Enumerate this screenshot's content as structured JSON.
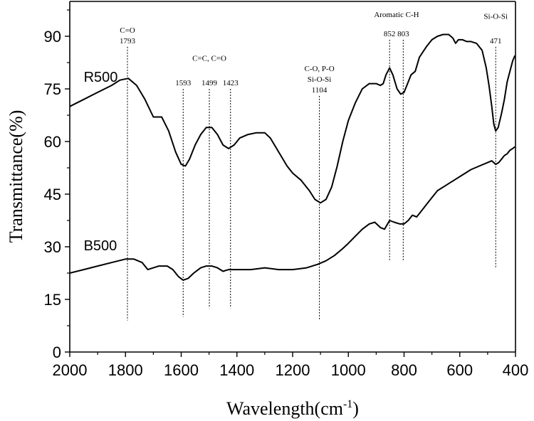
{
  "chart_data": {
    "type": "line",
    "xlabel": "Wavelength(cm",
    "xlabel_sup": "-1",
    "xlabel_close": ")",
    "ylabel": "Transmittance(%)",
    "xlim": [
      2000,
      400
    ],
    "ylim": [
      0,
      100
    ],
    "x_reversed": true,
    "xticks": [
      2000,
      1800,
      1600,
      1400,
      1200,
      1000,
      800,
      600,
      400
    ],
    "yticks": [
      0,
      15,
      30,
      45,
      60,
      75,
      90
    ],
    "grid": false,
    "series": [
      {
        "name": "R500",
        "label_at": [
          1950,
          77
        ],
        "points": [
          [
            2000,
            70
          ],
          [
            1950,
            72
          ],
          [
            1900,
            74
          ],
          [
            1850,
            76
          ],
          [
            1820,
            77.5
          ],
          [
            1790,
            78
          ],
          [
            1760,
            76
          ],
          [
            1730,
            72
          ],
          [
            1700,
            67
          ],
          [
            1670,
            67
          ],
          [
            1645,
            63
          ],
          [
            1620,
            57
          ],
          [
            1600,
            53.5
          ],
          [
            1585,
            53
          ],
          [
            1570,
            55
          ],
          [
            1550,
            59
          ],
          [
            1530,
            62
          ],
          [
            1510,
            64
          ],
          [
            1490,
            64
          ],
          [
            1470,
            62
          ],
          [
            1450,
            59
          ],
          [
            1430,
            58
          ],
          [
            1410,
            59
          ],
          [
            1390,
            61
          ],
          [
            1360,
            62
          ],
          [
            1330,
            62.5
          ],
          [
            1300,
            62.5
          ],
          [
            1280,
            61
          ],
          [
            1250,
            57
          ],
          [
            1220,
            53
          ],
          [
            1200,
            51
          ],
          [
            1170,
            49
          ],
          [
            1140,
            46
          ],
          [
            1120,
            43.5
          ],
          [
            1100,
            42.5
          ],
          [
            1080,
            43.5
          ],
          [
            1060,
            47
          ],
          [
            1040,
            53
          ],
          [
            1020,
            60
          ],
          [
            1000,
            66
          ],
          [
            975,
            71
          ],
          [
            950,
            75
          ],
          [
            925,
            76.5
          ],
          [
            900,
            76.5
          ],
          [
            885,
            76
          ],
          [
            875,
            76.5
          ],
          [
            865,
            79
          ],
          [
            852,
            81
          ],
          [
            840,
            79
          ],
          [
            825,
            75
          ],
          [
            812,
            73.5
          ],
          [
            800,
            74
          ],
          [
            790,
            76
          ],
          [
            775,
            79
          ],
          [
            760,
            80
          ],
          [
            745,
            84
          ],
          [
            720,
            87
          ],
          [
            700,
            89
          ],
          [
            680,
            90
          ],
          [
            660,
            90.5
          ],
          [
            640,
            90.5
          ],
          [
            625,
            89.5
          ],
          [
            615,
            88
          ],
          [
            605,
            89
          ],
          [
            590,
            89
          ],
          [
            575,
            88.5
          ],
          [
            560,
            88.5
          ],
          [
            540,
            88
          ],
          [
            520,
            86
          ],
          [
            505,
            81
          ],
          [
            495,
            76
          ],
          [
            485,
            70
          ],
          [
            478,
            65
          ],
          [
            471,
            63
          ],
          [
            462,
            64
          ],
          [
            450,
            68
          ],
          [
            440,
            72
          ],
          [
            430,
            77
          ],
          [
            420,
            80
          ],
          [
            410,
            83
          ],
          [
            402,
            84.5
          ]
        ]
      },
      {
        "name": "B500",
        "label_at": [
          1950,
          29
        ],
        "points": [
          [
            2000,
            22.5
          ],
          [
            1950,
            23.5
          ],
          [
            1900,
            24.5
          ],
          [
            1850,
            25.5
          ],
          [
            1800,
            26.5
          ],
          [
            1770,
            26.5
          ],
          [
            1740,
            25.5
          ],
          [
            1720,
            23.5
          ],
          [
            1700,
            24
          ],
          [
            1680,
            24.5
          ],
          [
            1650,
            24.5
          ],
          [
            1630,
            23.5
          ],
          [
            1610,
            21.5
          ],
          [
            1593,
            20.5
          ],
          [
            1575,
            21
          ],
          [
            1555,
            22.5
          ],
          [
            1530,
            24
          ],
          [
            1510,
            24.5
          ],
          [
            1490,
            24.5
          ],
          [
            1470,
            24
          ],
          [
            1450,
            23
          ],
          [
            1430,
            23.5
          ],
          [
            1410,
            23.5
          ],
          [
            1380,
            23.5
          ],
          [
            1350,
            23.5
          ],
          [
            1300,
            24
          ],
          [
            1250,
            23.5
          ],
          [
            1200,
            23.5
          ],
          [
            1150,
            24
          ],
          [
            1110,
            25
          ],
          [
            1080,
            26
          ],
          [
            1050,
            27.5
          ],
          [
            1020,
            29.5
          ],
          [
            1000,
            31
          ],
          [
            975,
            33
          ],
          [
            950,
            35
          ],
          [
            925,
            36.5
          ],
          [
            905,
            37
          ],
          [
            885,
            35.5
          ],
          [
            870,
            35
          ],
          [
            852,
            37.5
          ],
          [
            835,
            37
          ],
          [
            815,
            36.5
          ],
          [
            800,
            36.5
          ],
          [
            785,
            37.5
          ],
          [
            770,
            39
          ],
          [
            755,
            38.5
          ],
          [
            740,
            40
          ],
          [
            720,
            42
          ],
          [
            700,
            44
          ],
          [
            680,
            46
          ],
          [
            650,
            47.5
          ],
          [
            620,
            49
          ],
          [
            590,
            50.5
          ],
          [
            560,
            52
          ],
          [
            530,
            53
          ],
          [
            500,
            54
          ],
          [
            485,
            54.5
          ],
          [
            471,
            53.5
          ],
          [
            460,
            54
          ],
          [
            450,
            55
          ],
          [
            440,
            56
          ],
          [
            430,
            56.5
          ],
          [
            420,
            57.5
          ],
          [
            410,
            58
          ],
          [
            402,
            58.5
          ]
        ]
      }
    ],
    "annotations": [
      {
        "x": 1793,
        "label_lines": [
          "C=O",
          "1793"
        ],
        "line_top_y": 87,
        "line_bottom_y": 9
      },
      {
        "x": 1593,
        "label_lines": [
          "1593"
        ],
        "line_top_y": 75,
        "line_bottom_y": 10
      },
      {
        "x": 1499,
        "label_lines": [
          "1499"
        ],
        "line_top_y": 75,
        "line_bottom_y": 12.5
      },
      {
        "x": 1423,
        "label_lines": [
          "1423"
        ],
        "line_top_y": 75,
        "line_bottom_y": 12.5
      },
      {
        "x": 1104,
        "label_lines": [
          "C-O, P-O",
          "Si-O-Si",
          "1104"
        ],
        "line_top_y": 73,
        "line_bottom_y": 9
      },
      {
        "x": 852,
        "label_lines": [
          "852"
        ],
        "line_top_y": 89,
        "line_bottom_y": 26
      },
      {
        "x": 803,
        "label_lines": [
          "803"
        ],
        "line_top_y": 89,
        "line_bottom_y": 26
      },
      {
        "x": 471,
        "label_lines": [
          "471"
        ],
        "line_top_y": 87,
        "line_bottom_y": 24
      }
    ],
    "group_labels": [
      {
        "text": "C=C, C=O",
        "x": 1499,
        "y": 83
      },
      {
        "text": "Aromatic C-H",
        "x": 827,
        "y": 95.5
      },
      {
        "text": "Si-O-Si",
        "x": 471,
        "y": 95
      }
    ]
  }
}
